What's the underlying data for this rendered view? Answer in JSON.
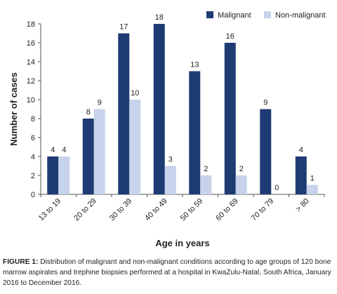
{
  "chart_data": {
    "type": "bar",
    "categories": [
      "13 to 19",
      "20 to 29",
      "30 to 39",
      "40 to 49",
      "50 to 59",
      "60 to 69",
      "70 to 79",
      "> 80"
    ],
    "series": [
      {
        "name": "Malignant",
        "values": [
          4,
          8,
          17,
          18,
          13,
          16,
          9,
          4
        ],
        "color": "#1f3b73"
      },
      {
        "name": "Non-malignant",
        "values": [
          4,
          9,
          10,
          3,
          2,
          2,
          0,
          1
        ],
        "color": "#c6d3ea"
      }
    ],
    "xlabel": "Age in years",
    "ylabel": "Number of cases",
    "ylim": [
      0,
      18
    ],
    "yticks": [
      0,
      2,
      4,
      6,
      8,
      10,
      12,
      14,
      16,
      18
    ],
    "grid": false,
    "legend": "top-right"
  },
  "caption": {
    "label": "FIGURE 1:",
    "text": "Distribution of malignant and non-malignant conditions according to age groups of 120 bone marrow aspirates and trephine biopsies performed at a hospital in KwaZulu-Natal, South Africa, January 2016 to December 2016."
  }
}
